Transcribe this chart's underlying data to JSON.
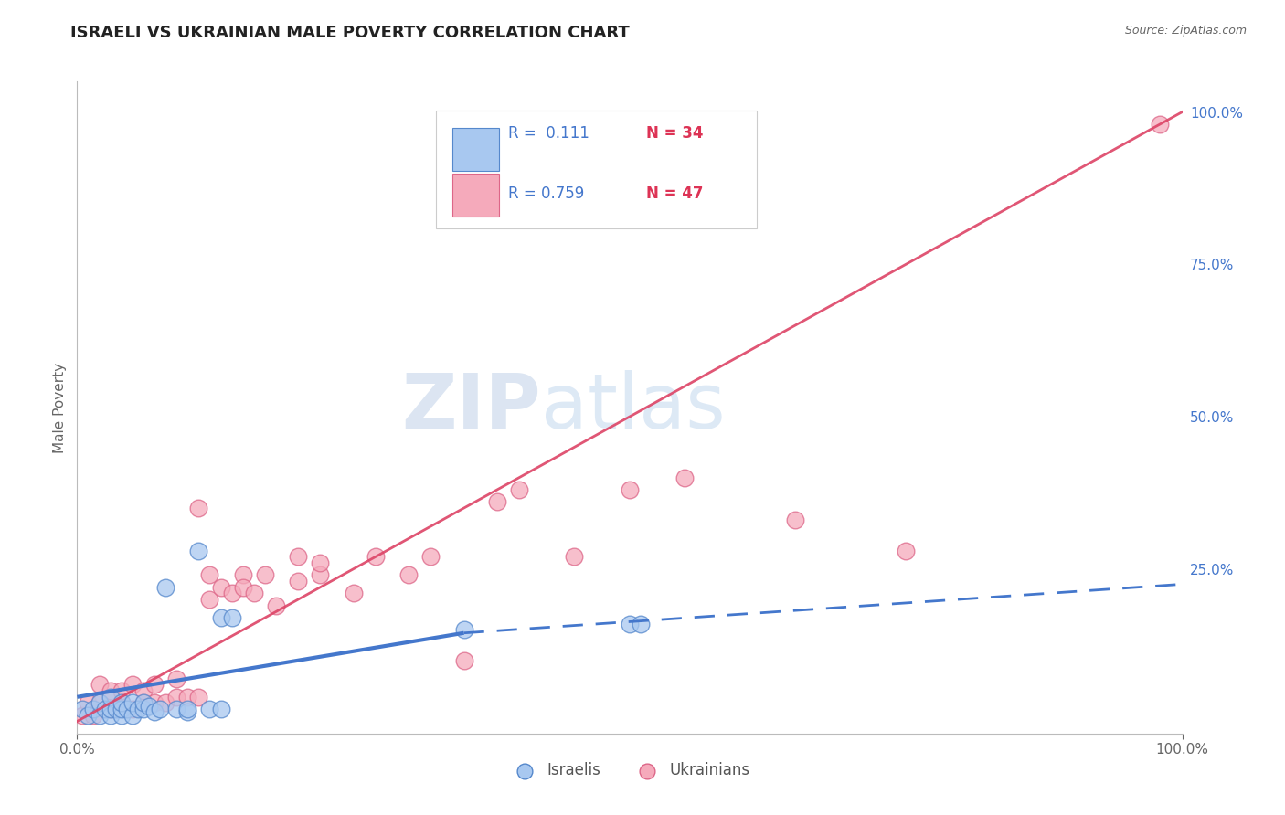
{
  "title": "ISRAELI VS UKRAINIAN MALE POVERTY CORRELATION CHART",
  "source": "Source: ZipAtlas.com",
  "ylabel": "Male Poverty",
  "xlim": [
    0,
    1
  ],
  "ylim": [
    -0.02,
    1.05
  ],
  "x_tick_labels": [
    "0.0%",
    "100.0%"
  ],
  "y_tick_labels": [
    "25.0%",
    "50.0%",
    "75.0%",
    "100.0%"
  ],
  "y_tick_positions": [
    0.25,
    0.5,
    0.75,
    1.0
  ],
  "watermark_zip": "ZIP",
  "watermark_atlas": "atlas",
  "legend_r_israeli": "R =  0.111",
  "legend_n_israeli": "N = 34",
  "legend_r_ukrainian": "R = 0.759",
  "legend_n_ukrainian": "N = 47",
  "israeli_color": "#A8C8F0",
  "ukrainian_color": "#F5AABB",
  "israeli_edge_color": "#5588CC",
  "ukrainian_edge_color": "#DD6688",
  "israeli_line_color": "#4477CC",
  "ukrainian_line_color": "#DD4466",
  "background_color": "#FFFFFF",
  "grid_color": "#CCCCCC",
  "israeli_points_x": [
    0.005,
    0.01,
    0.015,
    0.02,
    0.02,
    0.025,
    0.03,
    0.03,
    0.03,
    0.035,
    0.04,
    0.04,
    0.04,
    0.045,
    0.05,
    0.05,
    0.055,
    0.06,
    0.06,
    0.065,
    0.07,
    0.075,
    0.08,
    0.09,
    0.1,
    0.1,
    0.11,
    0.12,
    0.13,
    0.13,
    0.14,
    0.35,
    0.5,
    0.51
  ],
  "israeli_points_y": [
    0.02,
    0.01,
    0.02,
    0.01,
    0.03,
    0.02,
    0.01,
    0.02,
    0.04,
    0.02,
    0.01,
    0.02,
    0.03,
    0.02,
    0.01,
    0.03,
    0.02,
    0.02,
    0.03,
    0.025,
    0.015,
    0.02,
    0.22,
    0.02,
    0.015,
    0.02,
    0.28,
    0.02,
    0.02,
    0.17,
    0.17,
    0.15,
    0.16,
    0.16
  ],
  "ukrainian_points_x": [
    0.005,
    0.01,
    0.015,
    0.02,
    0.02,
    0.03,
    0.03,
    0.04,
    0.04,
    0.05,
    0.05,
    0.06,
    0.06,
    0.07,
    0.07,
    0.08,
    0.09,
    0.09,
    0.1,
    0.11,
    0.11,
    0.12,
    0.12,
    0.13,
    0.14,
    0.15,
    0.15,
    0.16,
    0.17,
    0.18,
    0.2,
    0.2,
    0.22,
    0.22,
    0.25,
    0.27,
    0.3,
    0.32,
    0.35,
    0.38,
    0.4,
    0.45,
    0.5,
    0.55,
    0.65,
    0.75,
    0.98
  ],
  "ukrainian_points_y": [
    0.01,
    0.03,
    0.01,
    0.03,
    0.06,
    0.02,
    0.05,
    0.03,
    0.05,
    0.02,
    0.06,
    0.03,
    0.05,
    0.03,
    0.06,
    0.03,
    0.04,
    0.07,
    0.04,
    0.04,
    0.35,
    0.2,
    0.24,
    0.22,
    0.21,
    0.24,
    0.22,
    0.21,
    0.24,
    0.19,
    0.23,
    0.27,
    0.24,
    0.26,
    0.21,
    0.27,
    0.24,
    0.27,
    0.1,
    0.36,
    0.38,
    0.27,
    0.38,
    0.4,
    0.33,
    0.28,
    0.98
  ],
  "israeli_line_start_x": 0.0,
  "israeli_line_start_y": 0.04,
  "israeli_line_solid_end_x": 0.35,
  "israeli_line_solid_end_y": 0.145,
  "israeli_line_end_x": 1.0,
  "israeli_line_end_y": 0.225,
  "ukrainian_line_start_x": 0.0,
  "ukrainian_line_start_y": 0.0,
  "ukrainian_line_end_x": 1.0,
  "ukrainian_line_end_y": 1.0
}
